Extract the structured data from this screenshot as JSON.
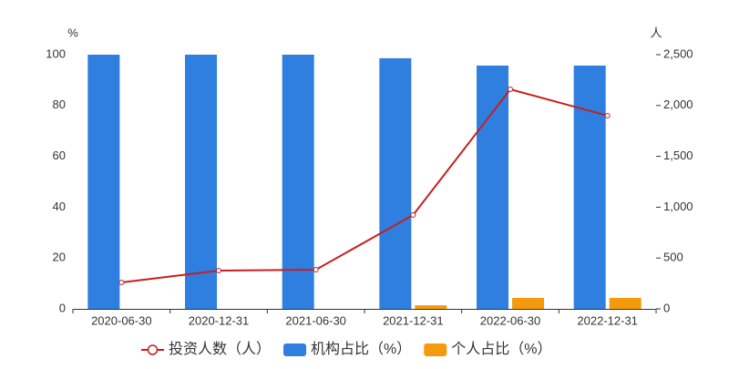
{
  "chart_data": {
    "type": "bar",
    "y_unit": "%",
    "y2_unit": "人",
    "categories": [
      "2020-06-30",
      "2020-12-31",
      "2021-06-30",
      "2021-12-31",
      "2022-06-30",
      "2022-12-31"
    ],
    "series": [
      {
        "name": "投资人数（人）",
        "type": "line",
        "axis": "y2",
        "color": "#c81e1e",
        "values": [
          260,
          376,
          385,
          923,
          2159,
          1900
        ]
      },
      {
        "name": "机构占比（%）",
        "type": "bar",
        "color": "#2e7fe0",
        "values": [
          100,
          100,
          100,
          98.6,
          95.7,
          95.7
        ]
      },
      {
        "name": "个人占比（%）",
        "type": "bar",
        "color": "#f59a0c",
        "values": [
          0,
          0,
          0,
          1.4,
          4.3,
          4.3
        ]
      }
    ],
    "ylim": [
      0,
      100
    ],
    "yticks": [
      0,
      20,
      40,
      60,
      80,
      100
    ],
    "y2lim": [
      0,
      2500
    ],
    "y2ticks": [
      0,
      500,
      {
        "value": 1000,
        "label": "1,000"
      },
      {
        "value": 1500,
        "label": "1,500"
      },
      {
        "value": 2000,
        "label": "2,000"
      },
      {
        "value": 2500,
        "label": "2,500"
      }
    ],
    "grid": false
  }
}
